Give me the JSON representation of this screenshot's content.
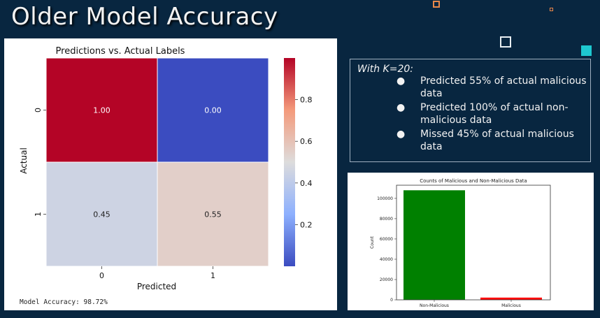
{
  "slide": {
    "title": "Older Model Accuracy"
  },
  "notes": {
    "heading": "With K=20:",
    "bullet_glyph": "●",
    "bullets": [
      "Predicted 55% of actual malicious data",
      "Predicted 100% of actual non-malicious data",
      "Missed 45% of actual malicious data"
    ]
  },
  "accuracy_text": "Model Accuracy: 98.72%",
  "colors": {
    "background": "#082640",
    "accent_cyan": "#1ec8d0",
    "accent_orange": "#e8884a",
    "bar_green": "#008000",
    "bar_red": "#ff0000"
  },
  "chart_data": [
    {
      "type": "heatmap",
      "title": "Predictions vs. Actual Labels",
      "xlabel": "Predicted",
      "ylabel": "Actual",
      "x_categories": [
        "0",
        "1"
      ],
      "y_categories": [
        "0",
        "1"
      ],
      "values": [
        [
          1.0,
          0.0
        ],
        [
          0.45,
          0.55
        ]
      ],
      "value_labels": [
        [
          "1.00",
          "0.00"
        ],
        [
          "0.45",
          "0.55"
        ]
      ],
      "colormap": "coolwarm",
      "colorbar_ticks": [
        0.2,
        0.4,
        0.6,
        0.8
      ],
      "colorbar_tick_labels": [
        "0.2",
        "0.4",
        "0.6",
        "0.8"
      ],
      "colorbar_range": [
        0,
        1
      ],
      "grid": false
    },
    {
      "type": "bar",
      "title": "Counts of Malicious and Non-Malicious Data",
      "categories": [
        "Non-Malicious",
        "Malicious"
      ],
      "values": [
        108000,
        2200
      ],
      "colors": [
        "#008000",
        "#ff0000"
      ],
      "xlabel": "",
      "ylabel": "Count",
      "ylim": [
        0,
        113000
      ],
      "yticks": [
        0,
        20000,
        40000,
        60000,
        80000,
        100000
      ],
      "ytick_labels": [
        "0",
        "20000",
        "40000",
        "60000",
        "80000",
        "100000"
      ],
      "grid": false
    }
  ]
}
